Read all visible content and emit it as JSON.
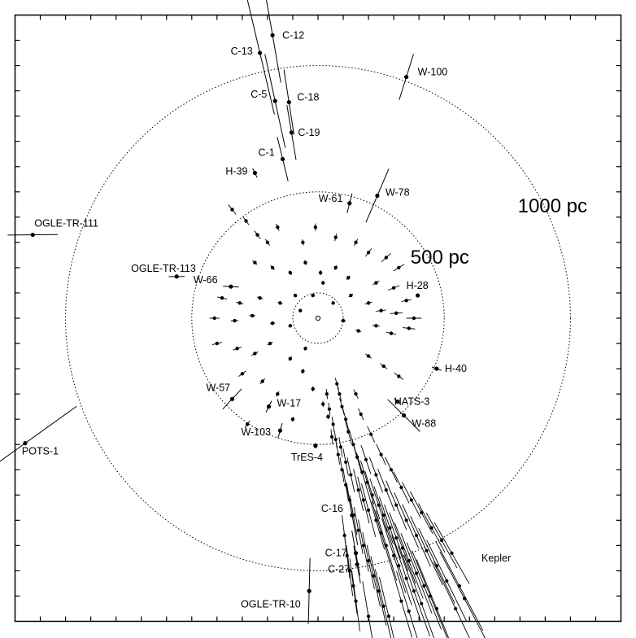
{
  "chart_data": {
    "type": "scatter",
    "title": "",
    "xlabel": "",
    "ylabel": "",
    "xlim": [
      -1200,
      1200
    ],
    "ylim": [
      -1200,
      1200
    ],
    "grid": false,
    "circles": [
      {
        "r_pc": 100,
        "label": ""
      },
      {
        "r_pc": 500,
        "label": "500 pc"
      },
      {
        "r_pc": 1000,
        "label": "1000 pc"
      }
    ],
    "labeled_systems": [
      {
        "name": "C-13",
        "x": -230,
        "y": 1050,
        "ex": 40,
        "ey": 250
      },
      {
        "name": "C-12",
        "x": -180,
        "y": 1120,
        "ex": 25,
        "ey": 190
      },
      {
        "name": "W-100",
        "x": 350,
        "y": 955,
        "ex": 45,
        "ey": 95
      },
      {
        "name": "C-5",
        "x": -170,
        "y": 860,
        "ex": 35,
        "ey": 190
      },
      {
        "name": "C-18",
        "x": -115,
        "y": 855,
        "ex": 25,
        "ey": 130
      },
      {
        "name": "C-19",
        "x": -105,
        "y": 735,
        "ex": 25,
        "ey": 110
      },
      {
        "name": "C-1",
        "x": -140,
        "y": 630,
        "ex": 20,
        "ey": 90
      },
      {
        "name": "H-39",
        "x": -250,
        "y": 575,
        "ex": 8,
        "ey": 20
      },
      {
        "name": "W-61",
        "x": 125,
        "y": 455,
        "ex": 10,
        "ey": 40
      },
      {
        "name": "W-78",
        "x": 235,
        "y": 485,
        "ex": 55,
        "ey": 115
      },
      {
        "name": "OGLE-TR-111",
        "x": -1130,
        "y": 330,
        "ex": 290,
        "ey": 95
      },
      {
        "name": "OGLE-TR-113",
        "x": -560,
        "y": 165,
        "ex": 90,
        "ey": 30
      },
      {
        "name": "W-66",
        "x": -345,
        "y": 125,
        "ex": 90,
        "ey": 30
      },
      {
        "name": "H-28",
        "x": 395,
        "y": 90,
        "ex": 10,
        "ey": 5
      },
      {
        "name": "H-40",
        "x": 470,
        "y": -200,
        "ex": 12,
        "ey": 20
      },
      {
        "name": "W-57",
        "x": -340,
        "y": -320,
        "ex": 35,
        "ey": 55
      },
      {
        "name": "HATS-3",
        "x": 315,
        "y": -330,
        "ex": 14,
        "ey": 18
      },
      {
        "name": "W-17",
        "x": -195,
        "y": -350,
        "ex": 14,
        "ey": 25
      },
      {
        "name": "W-88",
        "x": 340,
        "y": -385,
        "ex": 60,
        "ey": 90
      },
      {
        "name": "W-103",
        "x": -150,
        "y": -445,
        "ex": 14,
        "ey": 30
      },
      {
        "name": "POTS-1",
        "x": -1160,
        "y": -495,
        "ex": 545,
        "ey": 245
      },
      {
        "name": "TrES-4",
        "x": -10,
        "y": -505,
        "ex": 5,
        "ey": 10
      },
      {
        "name": "C-16",
        "x": 135,
        "y": -780,
        "ex": 15,
        "ey": 120
      },
      {
        "name": "C-17",
        "x": 150,
        "y": -930,
        "ex": 14,
        "ey": 90
      },
      {
        "name": "C-27",
        "x": 155,
        "y": -975,
        "ex": 14,
        "ey": 75
      },
      {
        "name": "OGLE-TR-10",
        "x": -35,
        "y": -1080,
        "ex": 10,
        "ey": 130
      }
    ],
    "field_label": "Kepler",
    "field_points": [
      {
        "x": 90,
        "y": -510
      },
      {
        "x": 110,
        "y": -570
      },
      {
        "x": 130,
        "y": -620
      },
      {
        "x": 160,
        "y": -680
      },
      {
        "x": 180,
        "y": -720
      },
      {
        "x": 200,
        "y": -760
      },
      {
        "x": 230,
        "y": -800
      },
      {
        "x": 250,
        "y": -850
      },
      {
        "x": 270,
        "y": -900
      },
      {
        "x": 300,
        "y": -940
      },
      {
        "x": 320,
        "y": -980
      },
      {
        "x": 350,
        "y": -1030
      },
      {
        "x": 380,
        "y": -1080
      },
      {
        "x": 410,
        "y": -1130
      },
      {
        "x": 75,
        "y": -260
      },
      {
        "x": 85,
        "y": -300
      },
      {
        "x": 95,
        "y": -350
      },
      {
        "x": 110,
        "y": -400
      },
      {
        "x": 120,
        "y": -450
      },
      {
        "x": 140,
        "y": -500
      },
      {
        "x": 155,
        "y": -550
      },
      {
        "x": 175,
        "y": -610
      },
      {
        "x": 195,
        "y": -650
      },
      {
        "x": 215,
        "y": -700
      },
      {
        "x": 240,
        "y": -740
      },
      {
        "x": 260,
        "y": -780
      },
      {
        "x": 285,
        "y": -830
      },
      {
        "x": 310,
        "y": -870
      },
      {
        "x": 335,
        "y": -910
      },
      {
        "x": 360,
        "y": -960
      },
      {
        "x": 390,
        "y": -1010
      },
      {
        "x": 420,
        "y": -1060
      },
      {
        "x": 445,
        "y": -1100
      },
      {
        "x": 470,
        "y": -1150
      },
      {
        "x": 60,
        "y": -420
      },
      {
        "x": 70,
        "y": -480
      },
      {
        "x": 80,
        "y": -540
      },
      {
        "x": 95,
        "y": -600
      },
      {
        "x": 110,
        "y": -660
      },
      {
        "x": 125,
        "y": -720
      },
      {
        "x": 140,
        "y": -780
      },
      {
        "x": 160,
        "y": -840
      },
      {
        "x": 180,
        "y": -900
      },
      {
        "x": 200,
        "y": -960
      },
      {
        "x": 220,
        "y": -1020
      },
      {
        "x": 240,
        "y": -1080
      },
      {
        "x": 260,
        "y": -1140
      },
      {
        "x": 280,
        "y": -1180
      },
      {
        "x": 35,
        "y": -300
      },
      {
        "x": 45,
        "y": -360
      },
      {
        "x": 55,
        "y": -470
      },
      {
        "x": 190,
        "y": -560
      },
      {
        "x": 230,
        "y": -620
      },
      {
        "x": 270,
        "y": -680
      },
      {
        "x": 310,
        "y": -740
      },
      {
        "x": 350,
        "y": -800
      },
      {
        "x": 390,
        "y": -860
      },
      {
        "x": 430,
        "y": -920
      },
      {
        "x": 470,
        "y": -980
      },
      {
        "x": 510,
        "y": -1040
      },
      {
        "x": 150,
        "y": -300
      },
      {
        "x": 170,
        "y": -380
      },
      {
        "x": 210,
        "y": -460
      },
      {
        "x": 250,
        "y": -540
      },
      {
        "x": 290,
        "y": -600
      },
      {
        "x": 330,
        "y": -670
      },
      {
        "x": 370,
        "y": -720
      },
      {
        "x": 410,
        "y": -770
      },
      {
        "x": 450,
        "y": -830
      },
      {
        "x": 490,
        "y": -880
      },
      {
        "x": 530,
        "y": -930
      },
      {
        "x": 105,
        "y": -860
      },
      {
        "x": 115,
        "y": -940
      },
      {
        "x": 125,
        "y": -1000
      },
      {
        "x": 140,
        "y": -1060
      },
      {
        "x": 150,
        "y": -1120
      },
      {
        "x": 200,
        "y": -1180
      },
      {
        "x": 330,
        "y": -1120
      },
      {
        "x": 360,
        "y": -1160
      },
      {
        "x": 560,
        "y": -1060
      },
      {
        "x": 580,
        "y": -1110
      },
      {
        "x": 545,
        "y": -1150
      }
    ],
    "field_sigma_pc": [
      40,
      55,
      70,
      85,
      95,
      110,
      120,
      130,
      145,
      155,
      165,
      180,
      190,
      205,
      25,
      30,
      35,
      45,
      50,
      60,
      70,
      80,
      90,
      100,
      110,
      120,
      130,
      140,
      150,
      160,
      170,
      185,
      195,
      210,
      30,
      35,
      40,
      50,
      60,
      70,
      80,
      95,
      105,
      115,
      125,
      140,
      150,
      160,
      20,
      25,
      30,
      60,
      75,
      90,
      105,
      120,
      135,
      150,
      165,
      180,
      20,
      25,
      35,
      45,
      55,
      70,
      80,
      95,
      110,
      125,
      140,
      80,
      90,
      100,
      110,
      120,
      140,
      150,
      165,
      200,
      210,
      205
    ],
    "inner_points": [
      {
        "x": -240,
        "y": 330
      },
      {
        "x": -340,
        "y": 430
      },
      {
        "x": -285,
        "y": 385
      },
      {
        "x": -200,
        "y": 300
      },
      {
        "x": -160,
        "y": 360
      },
      {
        "x": -60,
        "y": 300
      },
      {
        "x": -10,
        "y": 360
      },
      {
        "x": 70,
        "y": 320
      },
      {
        "x": 150,
        "y": 300
      },
      {
        "x": 200,
        "y": 260
      },
      {
        "x": 270,
        "y": 240
      },
      {
        "x": 320,
        "y": 200
      },
      {
        "x": -250,
        "y": 220
      },
      {
        "x": -180,
        "y": 200
      },
      {
        "x": -110,
        "y": 180
      },
      {
        "x": -50,
        "y": 220
      },
      {
        "x": 10,
        "y": 180
      },
      {
        "x": 70,
        "y": 200
      },
      {
        "x": 120,
        "y": 160
      },
      {
        "x": 230,
        "y": 140
      },
      {
        "x": 300,
        "y": 120
      },
      {
        "x": 350,
        "y": 70
      },
      {
        "x": -380,
        "y": 80
      },
      {
        "x": -310,
        "y": 60
      },
      {
        "x": -230,
        "y": 80
      },
      {
        "x": -150,
        "y": 60
      },
      {
        "x": -90,
        "y": 90
      },
      {
        "x": 130,
        "y": 90
      },
      {
        "x": 200,
        "y": 60
      },
      {
        "x": 250,
        "y": 30
      },
      {
        "x": 310,
        "y": 20
      },
      {
        "x": 380,
        "y": 0
      },
      {
        "x": -410,
        "y": 0
      },
      {
        "x": -330,
        "y": -10
      },
      {
        "x": -260,
        "y": 10
      },
      {
        "x": -180,
        "y": -20
      },
      {
        "x": -110,
        "y": -30
      },
      {
        "x": 100,
        "y": -10
      },
      {
        "x": 160,
        "y": -50
      },
      {
        "x": 230,
        "y": -30
      },
      {
        "x": 290,
        "y": -60
      },
      {
        "x": 360,
        "y": -40
      },
      {
        "x": -400,
        "y": -100
      },
      {
        "x": -320,
        "y": -120
      },
      {
        "x": -250,
        "y": -140
      },
      {
        "x": -190,
        "y": -100
      },
      {
        "x": -110,
        "y": -160
      },
      {
        "x": -50,
        "y": -120
      },
      {
        "x": 200,
        "y": -150
      },
      {
        "x": 260,
        "y": -190
      },
      {
        "x": 320,
        "y": -230
      },
      {
        "x": -300,
        "y": -220
      },
      {
        "x": -220,
        "y": -250
      },
      {
        "x": -160,
        "y": -300
      },
      {
        "x": -60,
        "y": -210
      },
      {
        "x": -20,
        "y": -280
      },
      {
        "x": 20,
        "y": -340
      },
      {
        "x": -100,
        "y": -400
      },
      {
        "x": -280,
        "y": -420
      },
      {
        "x": 40,
        "y": -390
      },
      {
        "x": -20,
        "y": 90
      },
      {
        "x": 20,
        "y": 140
      },
      {
        "x": 60,
        "y": 60
      },
      {
        "x": -70,
        "y": 30
      }
    ],
    "inner_sigma_pc": [
      20,
      25,
      20,
      15,
      15,
      12,
      15,
      15,
      15,
      20,
      25,
      25,
      12,
      12,
      10,
      10,
      10,
      10,
      10,
      15,
      25,
      20,
      20,
      15,
      12,
      10,
      8,
      10,
      15,
      20,
      25,
      30,
      20,
      15,
      12,
      10,
      8,
      10,
      12,
      15,
      20,
      25,
      20,
      18,
      15,
      12,
      10,
      8,
      15,
      18,
      22,
      18,
      15,
      12,
      10,
      10,
      12,
      10,
      18,
      10,
      6,
      8,
      6,
      6
    ]
  }
}
